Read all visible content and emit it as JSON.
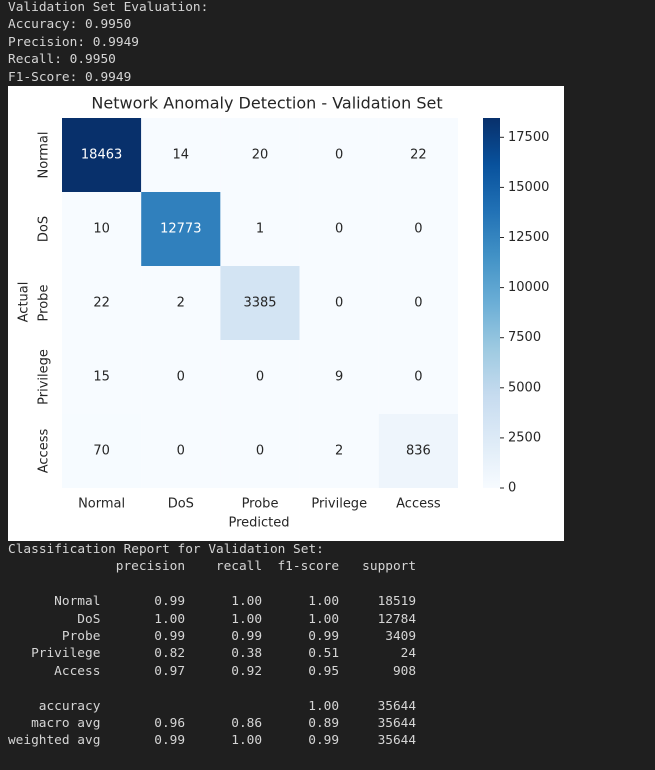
{
  "evaluation": {
    "lines": [
      "Validation Set Evaluation:",
      "Accuracy: 0.9950",
      "Precision: 0.9949",
      "Recall: 0.9950",
      "F1-Score: 0.9949"
    ]
  },
  "chart_data": {
    "type": "heatmap",
    "title": "Network Anomaly Detection - Validation Set",
    "x_label": "Predicted",
    "y_label": "Actual",
    "x_categories": [
      "Normal",
      "DoS",
      "Probe",
      "Privilege",
      "Access"
    ],
    "y_categories": [
      "Normal",
      "DoS",
      "Probe",
      "Privilege",
      "Access"
    ],
    "values": [
      [
        18463,
        14,
        20,
        0,
        22
      ],
      [
        10,
        12773,
        1,
        0,
        0
      ],
      [
        22,
        2,
        3385,
        0,
        0
      ],
      [
        15,
        0,
        0,
        9,
        0
      ],
      [
        70,
        0,
        0,
        2,
        836
      ]
    ],
    "clim": [
      0,
      18463
    ],
    "cticks": [
      0,
      2500,
      5000,
      7500,
      10000,
      12500,
      15000,
      17500
    ],
    "colormap": [
      "#f7fbff",
      "#deebf7",
      "#c6dbef",
      "#9ecae1",
      "#6baed6",
      "#4292c6",
      "#2171b5",
      "#08519c",
      "#08306b"
    ]
  },
  "report": {
    "title": "Classification Report for Validation Set:",
    "header": [
      "precision",
      "recall",
      "f1-score",
      "support"
    ],
    "class_rows": [
      [
        "Normal",
        "0.99",
        "1.00",
        "1.00",
        "18519"
      ],
      [
        "DoS",
        "1.00",
        "1.00",
        "1.00",
        "12784"
      ],
      [
        "Probe",
        "0.99",
        "0.99",
        "0.99",
        "3409"
      ],
      [
        "Privilege",
        "0.82",
        "0.38",
        "0.51",
        "24"
      ],
      [
        "Access",
        "0.97",
        "0.92",
        "0.95",
        "908"
      ]
    ],
    "summary_rows": [
      [
        "accuracy",
        null,
        null,
        "1.00",
        "35644"
      ],
      [
        "macro avg",
        "0.96",
        "0.86",
        "0.89",
        "35644"
      ],
      [
        "weighted avg",
        "0.99",
        "1.00",
        "0.99",
        "35644"
      ]
    ]
  }
}
